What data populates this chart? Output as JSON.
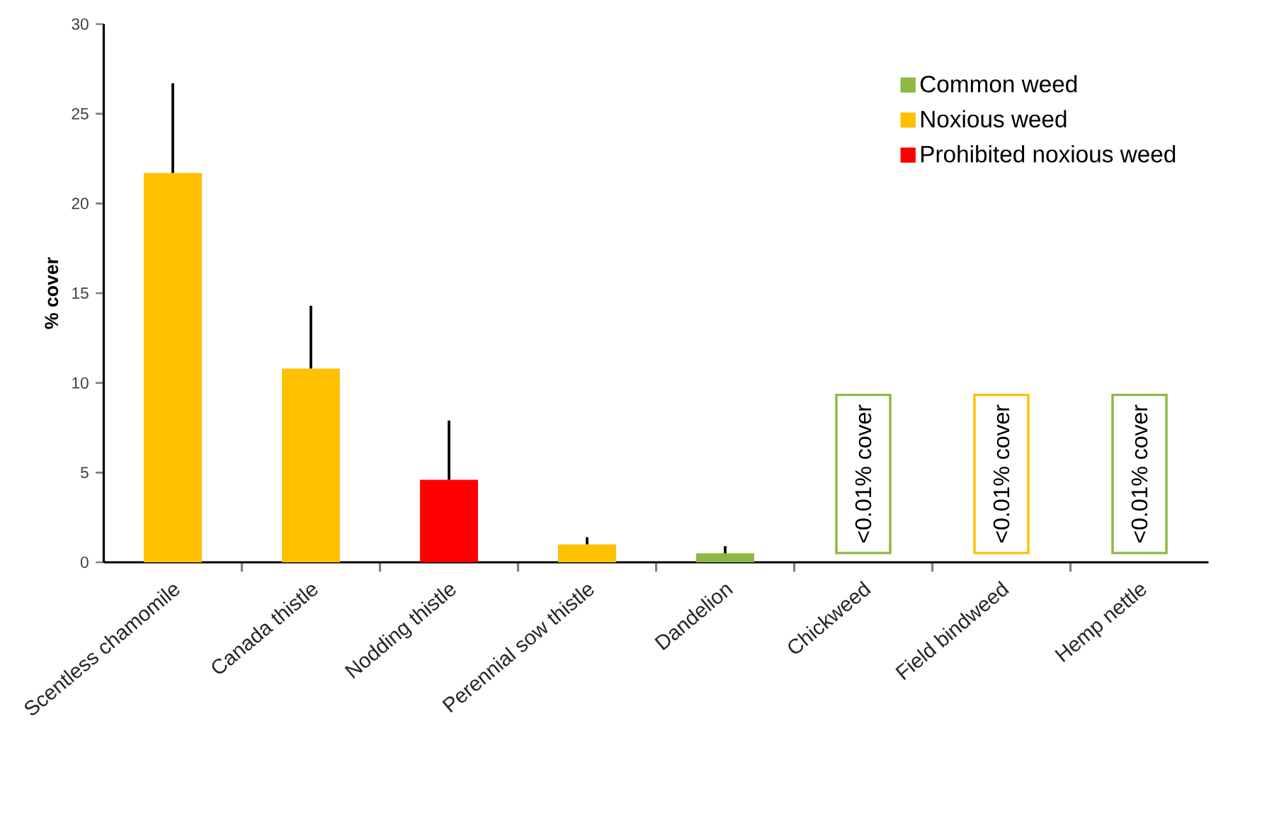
{
  "chart_data": {
    "type": "bar",
    "ylabel": "% cover",
    "categories": [
      "Scentless chamomile",
      "Canada thistle",
      "Nodding thistle",
      "Perennial sow thistle",
      "Dandelion",
      "Chickweed",
      "Field bindweed",
      "Hemp nettle"
    ],
    "series": [
      {
        "name": "Common weed",
        "color": "#8db843",
        "values": [
          null,
          null,
          null,
          null,
          0.5,
          null,
          null,
          null
        ],
        "errors": [
          null,
          null,
          null,
          null,
          [
            0.5,
            0.9
          ],
          null,
          null,
          null
        ],
        "value_labels": [
          null,
          null,
          null,
          null,
          null,
          "<0.01% cover",
          null,
          "<0.01% cover"
        ]
      },
      {
        "name": "Noxious weed",
        "color": "#ffc000",
        "values": [
          21.7,
          10.8,
          null,
          1.0,
          null,
          null,
          null,
          null
        ],
        "errors": [
          [
            21.7,
            26.7
          ],
          [
            10.8,
            14.3
          ],
          null,
          [
            1.0,
            1.4
          ],
          null,
          null,
          null,
          null
        ],
        "value_labels": [
          null,
          null,
          null,
          null,
          null,
          null,
          "<0.01% cover",
          null
        ]
      },
      {
        "name": "Prohibited noxious weed",
        "color": "#ff0000",
        "values": [
          null,
          null,
          4.6,
          null,
          null,
          null,
          null,
          null
        ],
        "errors": [
          null,
          null,
          [
            4.6,
            7.9
          ],
          null,
          null,
          null,
          null,
          null
        ]
      }
    ],
    "ylim": [
      0,
      30
    ],
    "yticks": [
      0,
      5,
      10,
      15,
      20,
      25,
      30
    ],
    "legend": "top right"
  }
}
